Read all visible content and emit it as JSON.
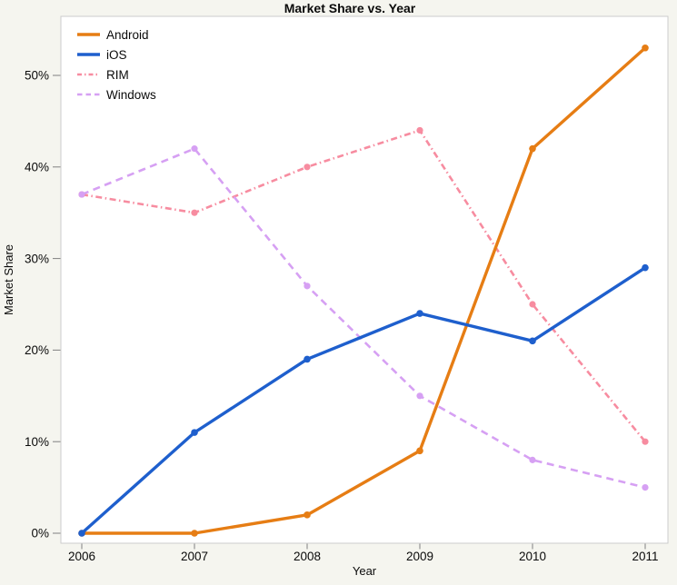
{
  "title": "Market Share vs. Year",
  "colors": {
    "page_background": "#F5F5EF",
    "plot_background": "#FFFFFF",
    "plot_border": "#CCCCCC",
    "tick": "#808080",
    "text": "#0A0A0A"
  },
  "chart_data": {
    "type": "line",
    "title": "Market Share vs. Year",
    "xlabel": "Year",
    "ylabel": "Market Share",
    "x": [
      2006,
      2007,
      2008,
      2009,
      2010,
      2011
    ],
    "series": [
      {
        "name": "Android",
        "color": "#E67D14",
        "line_style": "solid",
        "values": [
          0,
          0,
          2,
          9,
          42,
          53
        ]
      },
      {
        "name": "iOS",
        "color": "#1E5FCD",
        "line_style": "solid",
        "values": [
          0,
          11,
          19,
          24,
          21,
          29
        ]
      },
      {
        "name": "RIM",
        "color": "#F78CA0",
        "line_style": "dash-dot",
        "values": [
          37,
          35,
          40,
          44,
          25,
          10
        ]
      },
      {
        "name": "Windows",
        "color": "#D6A0F3",
        "line_style": "dashed",
        "values": [
          37,
          42,
          27,
          15,
          8,
          5
        ]
      }
    ],
    "y_ticks": [
      0,
      10,
      20,
      30,
      40,
      50
    ],
    "y_tick_suffix": "%",
    "ylim": [
      -1,
      56.5
    ],
    "grid": false,
    "legend_position": "top-left-inside",
    "markers": true
  }
}
